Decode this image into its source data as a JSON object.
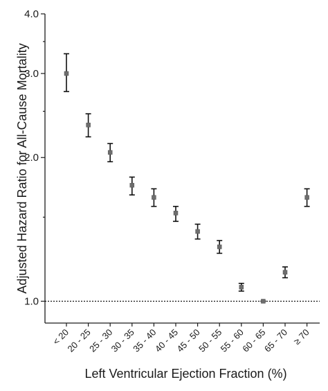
{
  "chart_data": {
    "type": "scatter",
    "title": "",
    "xlabel": "Left Ventricular Ejection Fraction (%)",
    "ylabel": "Adjusted Hazard Ratio for All-Cause Mortality",
    "y_scale": "log",
    "ylim": [
      0.9,
      4.0
    ],
    "yticks": [
      "1.0",
      "2.0",
      "3.0",
      "4.0"
    ],
    "categories": [
      "< 20",
      "20 - 25",
      "25 - 30",
      "30 - 35",
      "35 - 40",
      "40 - 45",
      "45 - 50",
      "50 - 55",
      "55 - 60",
      "60 - 65",
      "65 - 70",
      "≥ 70"
    ],
    "series": [
      {
        "estimate": [
          3.0,
          2.34,
          2.05,
          1.75,
          1.65,
          1.53,
          1.4,
          1.3,
          1.07,
          1.0,
          1.15,
          1.65
        ],
        "ci_lower": [
          2.75,
          2.21,
          1.96,
          1.67,
          1.58,
          1.47,
          1.35,
          1.26,
          1.05,
          1.0,
          1.12,
          1.58
        ],
        "ci_upper": [
          3.3,
          2.47,
          2.14,
          1.82,
          1.72,
          1.58,
          1.45,
          1.34,
          1.09,
          1.0,
          1.18,
          1.72
        ]
      }
    ],
    "reference_line": 1.0,
    "reference_style": "dotted",
    "grid": false,
    "marker_color": "#6e6e6e"
  }
}
